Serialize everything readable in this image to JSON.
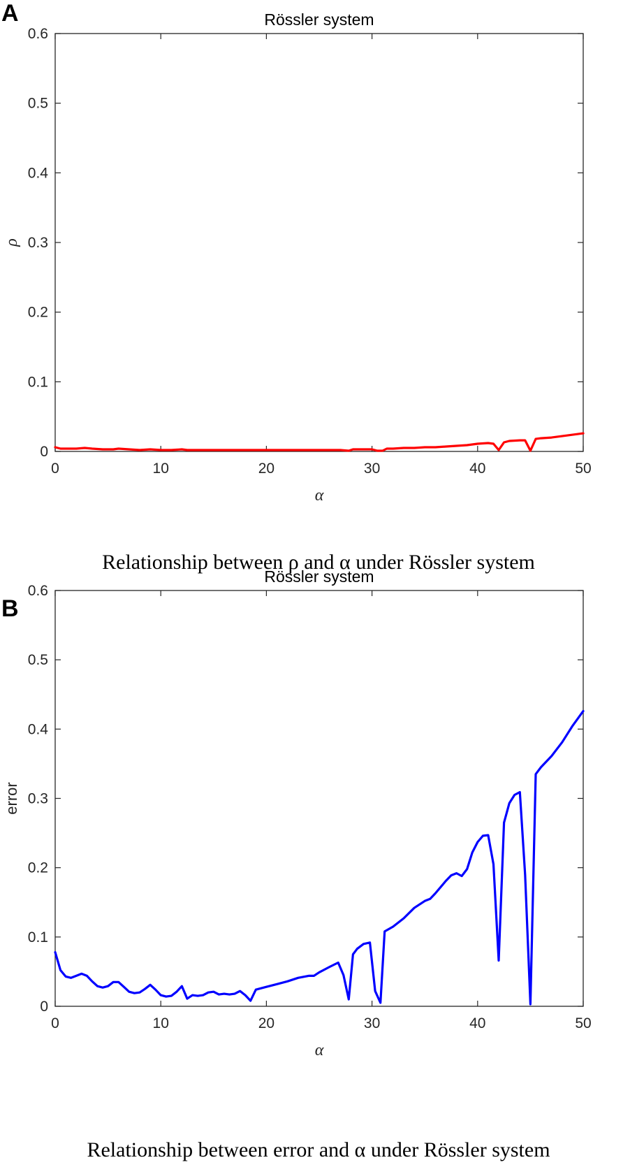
{
  "chart_data": [
    {
      "panel": "A",
      "type": "line",
      "title": "Rössler system",
      "xlabel": "α",
      "ylabel": "ρ",
      "caption": "Relationship between ρ and α under Rössler system",
      "xlim": [
        0,
        50
      ],
      "ylim": [
        0,
        0.6
      ],
      "xticks": [
        "0",
        "10",
        "20",
        "30",
        "40",
        "50"
      ],
      "yticks": [
        "0",
        "0.1",
        "0.2",
        "0.3",
        "0.4",
        "0.5",
        "0.6"
      ],
      "grid": false,
      "color": "#ff0000",
      "x": [
        0,
        0.5,
        1,
        2,
        2.8,
        3.5,
        4.5,
        5.5,
        6,
        7,
        8,
        9,
        10,
        11,
        12,
        12.5,
        13,
        14,
        15,
        16,
        17,
        18,
        18.5,
        19,
        20,
        21,
        22,
        23,
        24,
        25,
        26,
        27,
        27.8,
        28.2,
        29,
        30,
        30.5,
        31,
        31.4,
        32,
        33,
        34,
        35,
        36,
        37,
        38,
        39,
        40,
        41,
        41.5,
        42,
        42.5,
        43,
        44,
        44.5,
        45,
        45.5,
        46,
        47,
        48,
        49,
        50
      ],
      "y": [
        0.006,
        0.004,
        0.004,
        0.004,
        0.005,
        0.004,
        0.003,
        0.003,
        0.004,
        0.003,
        0.002,
        0.003,
        0.002,
        0.002,
        0.003,
        0.002,
        0.002,
        0.002,
        0.002,
        0.002,
        0.002,
        0.002,
        0.002,
        0.002,
        0.002,
        0.002,
        0.002,
        0.002,
        0.002,
        0.002,
        0.002,
        0.002,
        0.001,
        0.003,
        0.003,
        0.003,
        0.001,
        0.001,
        0.004,
        0.004,
        0.005,
        0.005,
        0.006,
        0.006,
        0.007,
        0.008,
        0.009,
        0.011,
        0.012,
        0.011,
        0.002,
        0.013,
        0.015,
        0.016,
        0.016,
        0.001,
        0.018,
        0.019,
        0.02,
        0.022,
        0.024,
        0.026
      ]
    },
    {
      "panel": "B",
      "type": "line",
      "title": "Rössler system",
      "xlabel": "α",
      "ylabel": "error",
      "caption": "Relationship between error and α under Rössler system",
      "xlim": [
        0,
        50
      ],
      "ylim": [
        0,
        0.6
      ],
      "xticks": [
        "0",
        "10",
        "20",
        "30",
        "40",
        "50"
      ],
      "yticks": [
        "0",
        "0.1",
        "0.2",
        "0.3",
        "0.4",
        "0.5",
        "0.6"
      ],
      "grid": false,
      "color": "#0000ff",
      "x": [
        0,
        0.5,
        1,
        1.5,
        2,
        2.5,
        3,
        3.5,
        4,
        4.5,
        5,
        5.5,
        6,
        6.5,
        7,
        7.5,
        8,
        8.5,
        9,
        9.5,
        10,
        10.5,
        11,
        11.5,
        12,
        12.5,
        13,
        13.5,
        14,
        14.5,
        15,
        15.5,
        16,
        16.5,
        17,
        17.5,
        18,
        18.5,
        19,
        19.5,
        20,
        21,
        22,
        23,
        24,
        24.5,
        25,
        26,
        26.8,
        27.3,
        27.8,
        28.2,
        28.6,
        29.2,
        29.8,
        30.3,
        30.8,
        31.2,
        32,
        33,
        34,
        35,
        35.5,
        36,
        37,
        37.5,
        38,
        38.5,
        39,
        39.5,
        40,
        40.5,
        41,
        41.5,
        42,
        42.5,
        43,
        43.5,
        44,
        44.5,
        45,
        45.5,
        46,
        47,
        48,
        49,
        50
      ],
      "y": [
        0.078,
        0.052,
        0.043,
        0.041,
        0.044,
        0.047,
        0.044,
        0.036,
        0.029,
        0.027,
        0.029,
        0.035,
        0.035,
        0.028,
        0.021,
        0.019,
        0.02,
        0.025,
        0.031,
        0.024,
        0.016,
        0.014,
        0.015,
        0.021,
        0.029,
        0.011,
        0.016,
        0.015,
        0.016,
        0.02,
        0.021,
        0.017,
        0.018,
        0.017,
        0.018,
        0.022,
        0.016,
        0.008,
        0.024,
        0.026,
        0.028,
        0.032,
        0.036,
        0.041,
        0.044,
        0.044,
        0.049,
        0.057,
        0.063,
        0.045,
        0.01,
        0.075,
        0.083,
        0.09,
        0.092,
        0.022,
        0.005,
        0.108,
        0.115,
        0.127,
        0.142,
        0.152,
        0.155,
        0.163,
        0.181,
        0.189,
        0.192,
        0.188,
        0.198,
        0.222,
        0.237,
        0.246,
        0.247,
        0.205,
        0.066,
        0.265,
        0.293,
        0.305,
        0.309,
        0.19,
        0.003,
        0.335,
        0.345,
        0.361,
        0.381,
        0.405,
        0.426
      ]
    }
  ]
}
